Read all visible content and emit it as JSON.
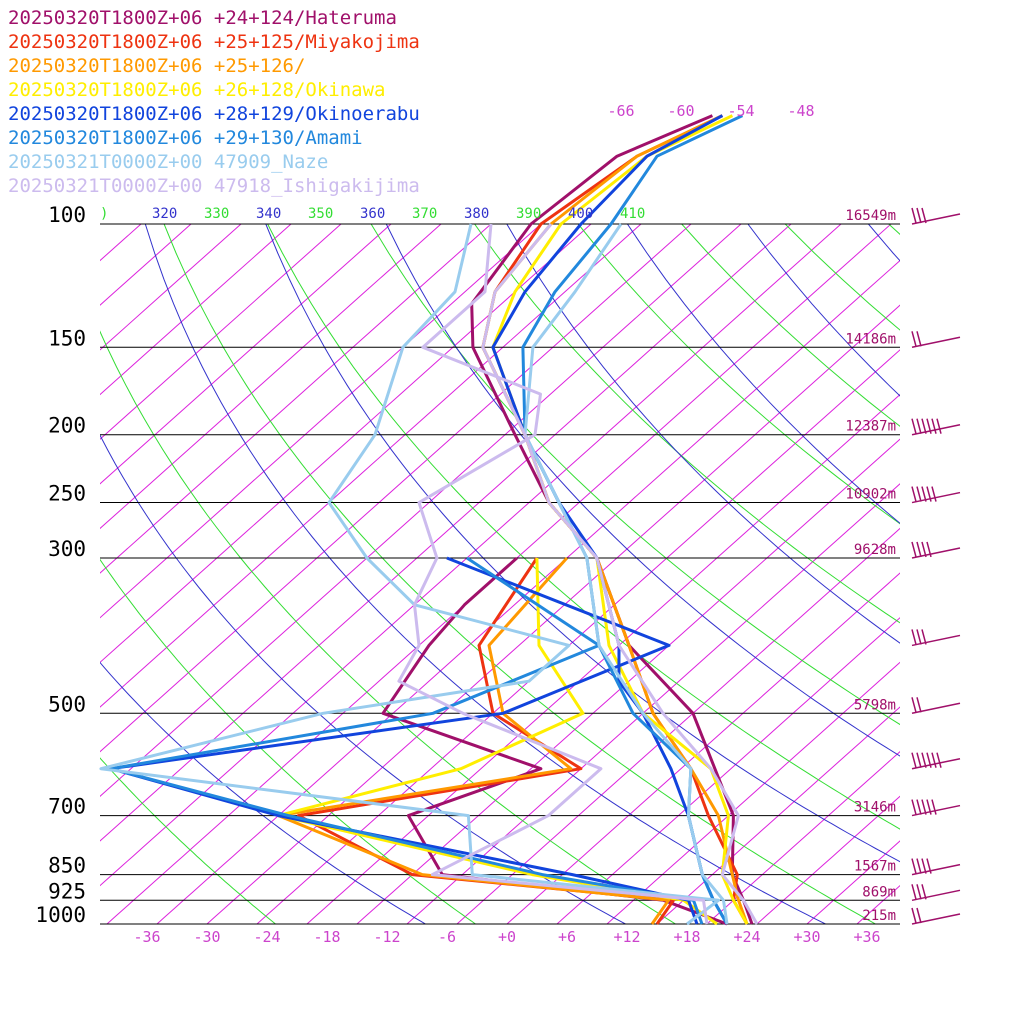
{
  "chart_data": {
    "type": "line",
    "title": "",
    "xlabel": "",
    "ylabel": "",
    "colors": {
      "isotherm": "#dd22dd",
      "dry_adiabat": "#33dd33",
      "moist_adiabat": "#3333cc",
      "isobar": "#000000",
      "height_label": "#a0106a",
      "temp_label": "#cc44cc",
      "wind_barb": "#a0106a"
    },
    "pressure_levels": [
      {
        "p": 100,
        "label": "100",
        "height": "16549m"
      },
      {
        "p": 150,
        "label": "150",
        "height": "14186m"
      },
      {
        "p": 200,
        "label": "200",
        "height": "12387m"
      },
      {
        "p": 250,
        "label": "250",
        "height": "10902m"
      },
      {
        "p": 300,
        "label": "300",
        "height": "9628m"
      },
      {
        "p": 500,
        "label": "500",
        "height": "5798m"
      },
      {
        "p": 700,
        "label": "700",
        "height": "3146m"
      },
      {
        "p": 850,
        "label": "850",
        "height": "1567m"
      },
      {
        "p": 925,
        "label": "925",
        "height": "869m"
      },
      {
        "p": 1000,
        "label": "1000",
        "height": "215m"
      }
    ],
    "temperature_ticks": [
      "-36",
      "-30",
      "-24",
      "-18",
      "-12",
      "-6",
      "+0",
      "+6",
      "+12",
      "+18",
      "+24",
      "+30",
      "+36"
    ],
    "temperature_values": [
      -36,
      -30,
      -24,
      -18,
      -12,
      -6,
      0,
      6,
      12,
      18,
      24,
      30,
      36
    ],
    "upper_temp_labels": [
      "-66",
      "-60",
      "-54",
      "-48"
    ],
    "upper_temp_values": [
      -66,
      -60,
      -54,
      -48
    ],
    "theta_labels": [
      {
        "text": ")",
        "color": "#33dd33"
      },
      {
        "text": "320",
        "color": "#3333cc"
      },
      {
        "text": "330",
        "color": "#33dd33"
      },
      {
        "text": "340",
        "color": "#3333cc"
      },
      {
        "text": "350",
        "color": "#33dd33"
      },
      {
        "text": "360",
        "color": "#3333cc"
      },
      {
        "text": "370",
        "color": "#33dd33"
      },
      {
        "text": "380",
        "color": "#3333cc"
      },
      {
        "text": "390",
        "color": "#33dd33"
      },
      {
        "text": "400",
        "color": "#3333cc"
      },
      {
        "text": "410",
        "color": "#33dd33"
      }
    ],
    "series": [
      {
        "name": "20250320T1800Z+06 +24+124/Hateruma",
        "color": "#a0106a",
        "temperature": [
          [
            1000,
            24.5
          ],
          [
            925,
            21
          ],
          [
            850,
            17
          ],
          [
            700,
            10.5
          ],
          [
            500,
            -5
          ],
          [
            400,
            -19
          ],
          [
            300,
            -32
          ],
          [
            250,
            -43
          ],
          [
            200,
            -54
          ],
          [
            150,
            -68
          ],
          [
            130,
            -73
          ],
          [
            100,
            -76
          ],
          [
            80,
            -75
          ],
          [
            70,
            -70
          ]
        ],
        "dewpoint": [
          [
            1000,
            22
          ],
          [
            925,
            13
          ],
          [
            850,
            -12
          ],
          [
            700,
            -22
          ],
          [
            600,
            -14
          ],
          [
            500,
            -36
          ],
          [
            400,
            -39
          ],
          [
            350,
            -40
          ],
          [
            300,
            -40
          ]
        ]
      },
      {
        "name": "20250320T1800Z+06 +25+125/Miyakojima",
        "color": "#ee3311",
        "temperature": [
          [
            1000,
            24
          ],
          [
            925,
            20
          ],
          [
            850,
            17.5
          ],
          [
            700,
            8
          ],
          [
            600,
            1
          ],
          [
            500,
            -9
          ],
          [
            400,
            -19
          ],
          [
            300,
            -32
          ],
          [
            250,
            -43
          ],
          [
            200,
            -53
          ],
          [
            150,
            -67
          ],
          [
            125,
            -72
          ],
          [
            100,
            -75
          ],
          [
            80,
            -73
          ],
          [
            70,
            -69
          ]
        ],
        "dewpoint": [
          [
            1000,
            15
          ],
          [
            925,
            14
          ],
          [
            850,
            -15
          ],
          [
            700,
            -33
          ],
          [
            600,
            -10
          ],
          [
            500,
            -25
          ],
          [
            400,
            -34
          ],
          [
            300,
            -38
          ]
        ]
      },
      {
        "name": "20250320T1800Z+06 +25+126/",
        "color": "#ff9900",
        "temperature": [
          [
            1000,
            24
          ],
          [
            925,
            20.5
          ],
          [
            850,
            17
          ],
          [
            700,
            9
          ],
          [
            600,
            1
          ],
          [
            500,
            -9
          ],
          [
            400,
            -19
          ],
          [
            300,
            -32
          ],
          [
            250,
            -43
          ],
          [
            200,
            -53
          ],
          [
            150,
            -67
          ],
          [
            125,
            -72
          ],
          [
            100,
            -74
          ],
          [
            80,
            -73
          ],
          [
            70,
            -69
          ]
        ],
        "dewpoint": [
          [
            1000,
            14.5
          ],
          [
            925,
            13.5
          ],
          [
            850,
            -14
          ],
          [
            700,
            -35
          ],
          [
            600,
            -11
          ],
          [
            500,
            -24
          ],
          [
            400,
            -33
          ],
          [
            300,
            -35
          ]
        ]
      },
      {
        "name": "20250320T1800Z+06 +26+128/Okinawa",
        "color": "#ffee00",
        "temperature": [
          [
            1000,
            24
          ],
          [
            925,
            20
          ],
          [
            850,
            16
          ],
          [
            700,
            10
          ],
          [
            600,
            3
          ],
          [
            500,
            -10
          ],
          [
            400,
            -21
          ],
          [
            300,
            -32
          ],
          [
            250,
            -43
          ],
          [
            200,
            -53
          ],
          [
            150,
            -66
          ],
          [
            125,
            -70
          ],
          [
            100,
            -73
          ],
          [
            80,
            -72
          ],
          [
            70,
            -68
          ]
        ],
        "dewpoint": [
          [
            1000,
            21
          ],
          [
            925,
            15
          ],
          [
            850,
            -3
          ],
          [
            700,
            -35
          ],
          [
            600,
            -22
          ],
          [
            500,
            -16
          ],
          [
            400,
            -28
          ],
          [
            300,
            -38
          ]
        ]
      },
      {
        "name": "20250320T1800Z+06 +28+129/Okinoerabu",
        "color": "#1144dd",
        "temperature": [
          [
            1000,
            22
          ],
          [
            925,
            18
          ],
          [
            850,
            14
          ],
          [
            700,
            6
          ],
          [
            600,
            -1
          ],
          [
            500,
            -10
          ],
          [
            450,
            -16
          ],
          [
            400,
            -20
          ],
          [
            300,
            -32
          ],
          [
            250,
            -42
          ],
          [
            200,
            -53
          ],
          [
            150,
            -66
          ],
          [
            125,
            -69
          ],
          [
            100,
            -71
          ],
          [
            80,
            -72
          ],
          [
            70,
            -69
          ]
        ],
        "dewpoint": [
          [
            1000,
            19
          ],
          [
            925,
            15.5
          ],
          [
            850,
            1
          ],
          [
            700,
            -35
          ],
          [
            600,
            -57
          ],
          [
            500,
            -24
          ],
          [
            400,
            -15
          ],
          [
            300,
            -47
          ]
        ]
      },
      {
        "name": "20250320T1800Z+06 +29+130/Amami",
        "color": "#2288dd",
        "temperature": [
          [
            1000,
            22
          ],
          [
            925,
            18
          ],
          [
            850,
            14
          ],
          [
            700,
            6
          ],
          [
            600,
            1
          ],
          [
            500,
            -11
          ],
          [
            400,
            -22
          ],
          [
            300,
            -33
          ],
          [
            250,
            -42
          ],
          [
            200,
            -53
          ],
          [
            150,
            -63
          ],
          [
            125,
            -66
          ],
          [
            100,
            -68
          ],
          [
            80,
            -71
          ],
          [
            70,
            -67
          ]
        ],
        "dewpoint": [
          [
            1000,
            19.5
          ],
          [
            925,
            16
          ],
          [
            850,
            -2
          ],
          [
            700,
            -34
          ],
          [
            600,
            -57
          ],
          [
            500,
            -31
          ],
          [
            400,
            -22
          ],
          [
            300,
            -45
          ]
        ]
      },
      {
        "name": "20250321T0000Z+00 47909_Naze",
        "color": "#99ccee",
        "temperature": [
          [
            1000,
            22
          ],
          [
            925,
            19
          ],
          [
            850,
            14
          ],
          [
            700,
            6
          ],
          [
            600,
            1
          ],
          [
            500,
            -10
          ],
          [
            400,
            -22
          ],
          [
            300,
            -33
          ],
          [
            250,
            -42
          ],
          [
            200,
            -53
          ],
          [
            150,
            -62
          ],
          [
            125,
            -64
          ],
          [
            100,
            -67
          ]
        ],
        "dewpoint": [
          [
            1000,
            18
          ],
          [
            925,
            18.5
          ],
          [
            850,
            -9
          ],
          [
            700,
            -16
          ],
          [
            600,
            -58
          ],
          [
            500,
            -42
          ],
          [
            450,
            -25
          ],
          [
            400,
            -25
          ],
          [
            350,
            -45
          ],
          [
            300,
            -55
          ],
          [
            250,
            -65
          ],
          [
            200,
            -68
          ],
          [
            150,
            -75
          ],
          [
            125,
            -76
          ],
          [
            100,
            -82
          ]
        ]
      },
      {
        "name": "20250321T0000Z+00 47918_Ishigakijima",
        "color": "#ccbbee",
        "temperature": [
          [
            1000,
            25
          ],
          [
            925,
            21
          ],
          [
            850,
            16
          ],
          [
            700,
            11
          ],
          [
            600,
            3
          ],
          [
            500,
            -8
          ],
          [
            400,
            -20
          ],
          [
            300,
            -32
          ],
          [
            250,
            -43
          ],
          [
            200,
            -53
          ],
          [
            150,
            -67
          ],
          [
            125,
            -72
          ],
          [
            100,
            -74
          ]
        ],
        "dewpoint": [
          [
            1000,
            20
          ],
          [
            925,
            17
          ],
          [
            850,
            -13
          ],
          [
            700,
            -8
          ],
          [
            600,
            -8
          ],
          [
            500,
            -28
          ],
          [
            450,
            -38
          ],
          [
            400,
            -40
          ],
          [
            350,
            -45
          ],
          [
            300,
            -48
          ],
          [
            250,
            -56
          ],
          [
            200,
            -52
          ],
          [
            175,
            -56
          ],
          [
            150,
            -73
          ],
          [
            125,
            -73
          ],
          [
            100,
            -80
          ]
        ]
      }
    ]
  }
}
